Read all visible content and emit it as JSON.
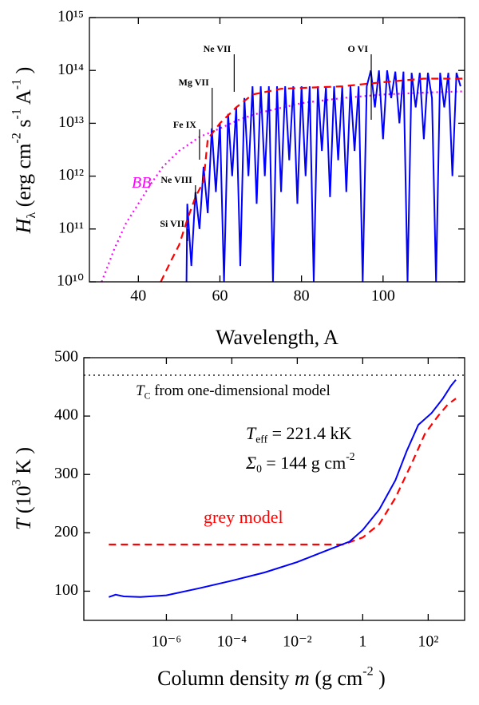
{
  "chart_data": [
    {
      "type": "line",
      "xlabel": [
        {
          "text": "Wavelength,  A"
        }
      ],
      "ylabel": [
        {
          "text": "H",
          "italic": true
        },
        {
          "text": "λ",
          "sub": true
        },
        {
          "text": "  (erg cm"
        },
        {
          "text": "-2",
          "sup": true
        },
        {
          "text": " s"
        },
        {
          "text": "-1",
          "sup": true
        },
        {
          "text": " A"
        },
        {
          "text": "-1",
          "sup": true
        },
        {
          "text": " )"
        }
      ],
      "xlim": [
        28,
        120
      ],
      "xticks": [
        40,
        60,
        80,
        100
      ],
      "ylim": [
        10000000000.0,
        1000000000000000.0
      ],
      "ylog": true,
      "yticks": [
        {
          "value": 10000000000.0,
          "label": "10¹⁰"
        },
        {
          "value": 100000000000.0,
          "label": "10¹¹"
        },
        {
          "value": 1000000000000.0,
          "label": "10¹²"
        },
        {
          "value": 10000000000000.0,
          "label": "10¹³"
        },
        {
          "value": 100000000000000.0,
          "label": "10¹⁴"
        },
        {
          "value": 1000000000000000.0,
          "label": "10¹⁵"
        }
      ],
      "series": [
        {
          "color": "#ff00ff",
          "style": "dotted",
          "x": [
            31,
            34,
            37,
            40,
            43,
            46,
            50,
            55,
            60,
            65,
            70,
            80,
            90,
            100,
            110,
            119.5
          ],
          "values": [
            10000000000.0,
            40000000000.0,
            130000000000.0,
            300000000000.0,
            700000000000.0,
            1500000000000.0,
            3000000000000.0,
            5500000000000.0,
            8000000000000.0,
            12000000000000.0,
            16000000000000.0,
            24000000000000.0,
            30000000000000.0,
            35000000000000.0,
            38000000000000.0,
            40000000000000.0
          ]
        },
        {
          "color": "#0000ff",
          "style": "solid",
          "x": [
            51.8,
            52,
            53,
            54,
            55,
            56,
            57,
            58,
            59,
            60,
            61,
            62,
            63,
            64,
            65,
            66,
            67,
            68,
            69,
            70,
            71,
            72,
            73,
            74,
            75,
            76,
            77,
            78,
            79,
            80,
            81,
            82,
            83,
            84,
            85,
            86,
            87,
            88,
            89,
            90,
            91,
            92,
            93,
            94,
            95,
            96,
            97,
            98,
            99,
            100,
            101,
            102,
            103,
            104,
            105,
            106,
            107,
            108,
            109,
            110,
            111,
            112,
            113,
            114,
            115,
            116,
            117,
            118,
            119
          ],
          "values": [
            10000000000.0,
            300000000000.0,
            20000000000.0,
            500000000000.0,
            100000000000.0,
            1500000000000.0,
            200000000000.0,
            8000000000000.0,
            500000000000.0,
            10000000000000.0,
            10000000000.0,
            15000000000000.0,
            1000000000000.0,
            20000000000000.0,
            20000000000.0,
            30000000000000.0,
            1000000000000.0,
            50000000000000.0,
            300000000000.0,
            50000000000000.0,
            1000000000000.0,
            50000000000000.0,
            10000000000.0,
            50000000000000.0,
            500000000000.0,
            50000000000000.0,
            2000000000000.0,
            50000000000000.0,
            300000000000.0,
            50000000000000.0,
            1000000000000.0,
            50000000000000.0,
            10000000000.0,
            50000000000000.0,
            3000000000000.0,
            50000000000000.0,
            400000000000.0,
            50000000000000.0,
            2000000000000.0,
            50000000000000.0,
            500000000000.0,
            50000000000000.0,
            3000000000000.0,
            50000000000000.0,
            10000000000.0,
            50000000000000.0,
            100000000000000.0,
            20000000000000.0,
            100000000000000.0,
            5000000000000.0,
            100000000000000.0,
            30000000000000.0,
            95000000000000.0,
            10000000000000.0,
            95000000000000.0,
            10000000000.0,
            90000000000000.0,
            20000000000000.0,
            90000000000000.0,
            5000000000000.0,
            90000000000000.0,
            30000000000000.0,
            10000000000.0,
            90000000000000.0,
            20000000000000.0,
            90000000000000.0,
            1000000000000.0,
            90000000000000.0,
            50000000000000.0
          ]
        },
        {
          "color": "#ff0000",
          "style": "dashed",
          "x": [
            45.5,
            48,
            50,
            52,
            54,
            56,
            57,
            60,
            64,
            68,
            75,
            90,
            100,
            110,
            119.5
          ],
          "values": [
            10000000000.0,
            25000000000.0,
            50000000000.0,
            150000000000.0,
            400000000000.0,
            800000000000.0,
            5000000000000.0,
            10000000000000.0,
            20000000000000.0,
            35000000000000.0,
            45000000000000.0,
            50000000000000.0,
            60000000000000.0,
            70000000000000.0,
            70000000000000.0
          ]
        }
      ],
      "lines": [
        {
          "label": "Ne VII",
          "x": 63.5
        },
        {
          "label": "O VI",
          "x": 97.1
        },
        {
          "label": "Mg VII",
          "x": 58.1
        },
        {
          "label": "Fe IX",
          "x": 55.0
        },
        {
          "label": "Ne VIII",
          "x": 54.0
        },
        {
          "label": "Si VII",
          "x": 52.1
        }
      ],
      "annotations": [
        {
          "color": "#ff00ff",
          "parts": [
            {
              "text": "BB",
              "italic": true
            }
          ]
        }
      ]
    },
    {
      "type": "line",
      "xlabel": [
        {
          "text": "Column density "
        },
        {
          "text": "m",
          "italic": true
        },
        {
          "text": " (g cm"
        },
        {
          "text": "-2",
          "sup": true
        },
        {
          "text": " )"
        }
      ],
      "ylabel": [
        {
          "text": "T",
          "italic": true
        },
        {
          "text": " (10"
        },
        {
          "text": "3",
          "sup": true
        },
        {
          "text": " K )"
        }
      ],
      "xlim": [
        3e-09,
        1300
      ],
      "xlog": true,
      "xticks": [
        {
          "value": 1e-06,
          "label": "10⁻⁶"
        },
        {
          "value": 0.0001,
          "label": "10⁻⁴"
        },
        {
          "value": 0.01,
          "label": "10⁻²"
        },
        1,
        {
          "value": 100,
          "label": "10²"
        }
      ],
      "ylim": [
        50,
        500
      ],
      "yticks": [
        100,
        200,
        300,
        400,
        500
      ],
      "reference_lines": [
        {
          "value": 470,
          "color": "#000000",
          "style": "dotted"
        }
      ],
      "series": [
        {
          "color": "#ff0000",
          "style": "dashed",
          "x": [
            1.74e-08,
            0.25,
            1,
            3.2,
            10,
            32,
            80,
            200,
            400,
            700
          ],
          "values": [
            180,
            180,
            192,
            215,
            260,
            320,
            370,
            400,
            420,
            430
          ]
        },
        {
          "color": "#0000ff",
          "style": "solid",
          "x": [
            1.74e-08,
            2.8e-08,
            5e-08,
            1.6e-07,
            1e-06,
            1e-05,
            0.0001,
            0.001,
            0.01,
            0.1,
            0.4,
            1,
            3.2,
            10,
            22,
            50,
            126,
            280,
            500,
            700
          ],
          "values": [
            90,
            94,
            91,
            90,
            93,
            105,
            118,
            132,
            150,
            172,
            185,
            205,
            240,
            290,
            340,
            385,
            405,
            430,
            452,
            462
          ]
        }
      ],
      "annotations": [
        {
          "color": "#000000",
          "parts": [
            {
              "text": "T",
              "italic": true
            },
            {
              "text": "C",
              "sub": true
            },
            {
              "text": " from one-dimensional model"
            }
          ]
        },
        {
          "color": "#000000",
          "parts": [
            {
              "text": "T",
              "italic": true
            },
            {
              "text": "eff",
              "sub": true
            },
            {
              "text": " = 221.4 kK"
            }
          ]
        },
        {
          "color": "#000000",
          "parts": [
            {
              "text": "Σ",
              "italic": true
            },
            {
              "text": "0",
              "sub": true
            },
            {
              "text": " = 144  g cm"
            },
            {
              "text": "-2",
              "sup": true
            }
          ]
        },
        {
          "color": "#ff0000",
          "parts": [
            {
              "text": "grey model"
            }
          ]
        }
      ]
    }
  ]
}
